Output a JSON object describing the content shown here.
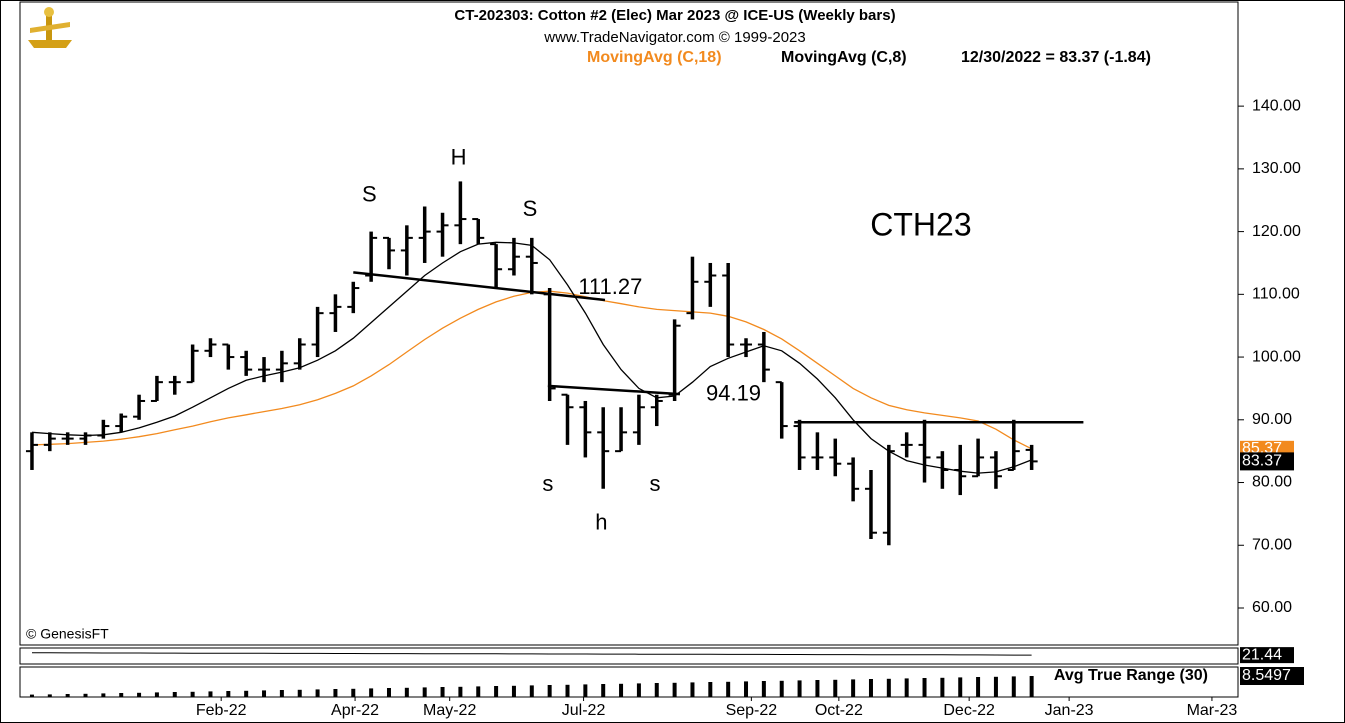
{
  "chart_data": {
    "type": "ohlc",
    "title": "CT-202303:  Cotton #2 (Elec) Mar 2023 @ ICE-US  (Weekly bars)",
    "subtitle": "www.TradeNavigator.com © 1999-2023",
    "last_label": "12/30/2022 = 83.37 (-1.84)",
    "credit": "© GenesisFT",
    "categories": [
      null,
      null,
      null,
      null,
      null,
      null,
      null,
      null,
      null,
      null,
      null,
      null,
      null,
      null,
      null,
      null,
      null,
      null,
      null,
      null,
      null,
      null,
      null,
      null,
      null,
      null,
      null,
      null,
      null,
      null,
      null,
      null,
      null,
      null,
      null,
      null,
      null,
      null,
      null,
      null,
      null,
      null,
      null,
      null,
      null,
      null,
      null,
      null,
      null,
      null,
      null,
      null,
      null,
      null,
      null,
      null,
      null
    ],
    "open": [
      85,
      86,
      87,
      87,
      87.5,
      89,
      90.5,
      93,
      96,
      96,
      101,
      102,
      100,
      98,
      98,
      99,
      102,
      107,
      108,
      113,
      119,
      117,
      119,
      120,
      121,
      122,
      118,
      114,
      116,
      110,
      94,
      92,
      88,
      85,
      88,
      92,
      94,
      107,
      112,
      113,
      102,
      102,
      96,
      89,
      84,
      84,
      83,
      79,
      72,
      86,
      86,
      84,
      82,
      81,
      84,
      82,
      85.2
    ],
    "high": [
      88,
      88,
      88,
      88,
      90,
      91,
      94,
      97,
      97,
      102,
      103,
      102,
      101,
      100,
      101,
      103,
      108,
      110,
      112,
      120,
      119,
      121,
      124,
      123,
      128,
      122,
      118,
      119,
      119,
      111,
      94,
      93,
      92,
      92,
      94,
      94,
      106,
      116,
      115,
      115,
      103,
      104,
      96,
      90,
      88,
      87,
      84,
      82,
      86,
      88,
      90,
      85,
      86,
      87,
      85,
      90,
      86
    ],
    "low": [
      82,
      85,
      86,
      86,
      87,
      88,
      90,
      93,
      94,
      96,
      100,
      98,
      97,
      96,
      96,
      98,
      100,
      104,
      107,
      112,
      114,
      113,
      115,
      116,
      118,
      118,
      111,
      113,
      110,
      93,
      86,
      84,
      79,
      85,
      86,
      89,
      93,
      106,
      108,
      100,
      100,
      96,
      87,
      82,
      82,
      81,
      77,
      71,
      70,
      84,
      80,
      79,
      78,
      81,
      79,
      82,
      82
    ],
    "close": [
      86,
      87,
      87,
      87.5,
      89,
      90.5,
      93,
      96,
      96,
      101,
      102,
      100,
      98,
      98,
      99,
      102,
      107,
      108,
      111,
      119,
      117,
      119,
      120,
      121,
      122,
      119,
      114,
      116,
      115,
      95,
      92,
      88,
      85,
      88,
      92,
      93,
      105,
      112,
      113,
      102,
      102,
      98,
      89,
      84,
      84,
      83,
      79,
      72,
      85,
      86,
      84,
      82,
      81,
      84,
      81,
      85,
      83.37
    ],
    "bar_color": "#000000",
    "series": [
      {
        "name": "MovingAvg (C,18)",
        "color": "#f28a1e",
        "values": [
          86,
          86.1,
          86.2,
          86.4,
          86.6,
          86.9,
          87.3,
          87.8,
          88.4,
          89,
          89.7,
          90.3,
          90.8,
          91.3,
          91.8,
          92.4,
          93.2,
          94.2,
          95.4,
          97,
          98.8,
          100.8,
          102.8,
          104.6,
          106.2,
          107.6,
          108.8,
          109.7,
          110.3,
          110.5,
          110.2,
          109.6,
          109,
          108.5,
          108,
          107.6,
          107.4,
          107.2,
          107,
          106.5,
          105.6,
          104.4,
          102.9,
          101,
          99,
          97,
          95,
          93.5,
          92.3,
          91.6,
          91.1,
          90.7,
          90.3,
          89.8,
          88.5,
          86.8,
          85.37
        ]
      },
      {
        "name": "MovingAvg (C,8)",
        "color": "#000000",
        "values": [
          88,
          87.8,
          87.6,
          87.5,
          87.6,
          88,
          88.7,
          89.6,
          90.6,
          92,
          93.5,
          95,
          96.3,
          97,
          97.6,
          98.3,
          99.5,
          101,
          103,
          105.5,
          108,
          110.5,
          113,
          115,
          116.8,
          118,
          118.3,
          118.2,
          117.8,
          115.5,
          111.5,
          107,
          102,
          98,
          95,
          93.5,
          93.8,
          96,
          98.5,
          99.8,
          100.8,
          101.8,
          101,
          99,
          96.5,
          93.5,
          90,
          87,
          85,
          83.5,
          82.8,
          82.3,
          81.8,
          81.5,
          81.7,
          82.5,
          83.6
        ]
      }
    ],
    "xlim": [
      -0.67,
      67.56
    ],
    "xticks": [
      {
        "value": 10.6,
        "label": "Feb-22"
      },
      {
        "value": 18.1,
        "label": "Apr-22"
      },
      {
        "value": 23.4,
        "label": "May-22"
      },
      {
        "value": 30.9,
        "label": "Jul-22"
      },
      {
        "value": 40.3,
        "label": "Sep-22"
      },
      {
        "value": 45.2,
        "label": "Oct-22"
      },
      {
        "value": 52.5,
        "label": "Dec-22"
      },
      {
        "value": 58.1,
        "label": "Jan-23"
      },
      {
        "value": 66.1,
        "label": "Mar-23"
      }
    ],
    "ylim": [
      54.1,
      156.6
    ],
    "yticks": [
      {
        "value": 60,
        "label": "60.00"
      },
      {
        "value": 70,
        "label": "70.00"
      },
      {
        "value": 80,
        "label": "80.00"
      },
      {
        "value": 90,
        "label": "90.00"
      },
      {
        "value": 100,
        "label": "100.00"
      },
      {
        "value": 110,
        "label": "110.00"
      },
      {
        "value": 120,
        "label": "120.00"
      },
      {
        "value": 130,
        "label": "130.00"
      },
      {
        "value": 140,
        "label": "140.00"
      }
    ],
    "annotations": [
      {
        "text": "S",
        "x": 18.9,
        "y": 125.7
      },
      {
        "text": "H",
        "x": 23.9,
        "y": 131.6
      },
      {
        "text": "S",
        "x": 27.9,
        "y": 123.4
      },
      {
        "text": "s",
        "x": 28.9,
        "y": 79.6
      },
      {
        "text": "h",
        "x": 31.9,
        "y": 73.4
      },
      {
        "text": "s",
        "x": 34.9,
        "y": 79.6
      },
      {
        "text": "111.27",
        "x": 32.4,
        "y": 111.0
      },
      {
        "text": "94.19",
        "x": 39.3,
        "y": 94.0
      },
      {
        "text": "CTH23",
        "x": 49.8,
        "y": 120.7
      }
    ],
    "lines": [
      {
        "x": [
          18,
          32.1
        ],
        "y": [
          113.5,
          109.1
        ]
      },
      {
        "x": [
          28.9,
          36.3
        ],
        "y": [
          95.4,
          94.1
        ]
      },
      {
        "x": [
          42.7,
          58.9
        ],
        "y": [
          89.6,
          89.6
        ]
      }
    ],
    "indicator": {
      "ylim": [
        17,
        25
      ],
      "color": "#000000",
      "values": [
        22.6,
        22.58,
        22.56,
        22.54,
        22.52,
        22.5,
        22.48,
        22.46,
        22.44,
        22.42,
        22.4,
        22.38,
        22.36,
        22.34,
        22.32,
        22.3,
        22.28,
        22.26,
        22.24,
        22.22,
        22.2,
        22.18,
        22.16,
        22.14,
        22.12,
        22.1,
        22.08,
        22.06,
        22.04,
        22.02,
        22,
        21.98,
        21.96,
        21.94,
        21.92,
        21.9,
        21.88,
        21.86,
        21.84,
        21.82,
        21.8,
        21.78,
        21.76,
        21.74,
        21.72,
        21.7,
        21.68,
        21.66,
        21.64,
        21.62,
        21.6,
        21.58,
        21.56,
        21.54,
        21.5,
        21.47,
        21.44
      ]
    },
    "atr": {
      "name": "Avg True Range (30)",
      "ylim": [
        7.5,
        9.0
      ],
      "color": "#000000",
      "values": [
        7.62,
        7.63,
        7.65,
        7.66,
        7.68,
        7.7,
        7.71,
        7.73,
        7.75,
        7.76,
        7.78,
        7.8,
        7.81,
        7.83,
        7.85,
        7.86,
        7.88,
        7.9,
        7.91,
        7.93,
        7.95,
        7.96,
        7.98,
        8.0,
        8.01,
        8.03,
        8.05,
        8.06,
        8.08,
        8.1,
        8.11,
        8.13,
        8.15,
        8.16,
        8.18,
        8.2,
        8.21,
        8.23,
        8.25,
        8.26,
        8.28,
        8.3,
        8.31,
        8.33,
        8.35,
        8.36,
        8.38,
        8.4,
        8.41,
        8.43,
        8.45,
        8.46,
        8.48,
        8.5,
        8.51,
        8.53,
        8.5497
      ]
    }
  }
}
